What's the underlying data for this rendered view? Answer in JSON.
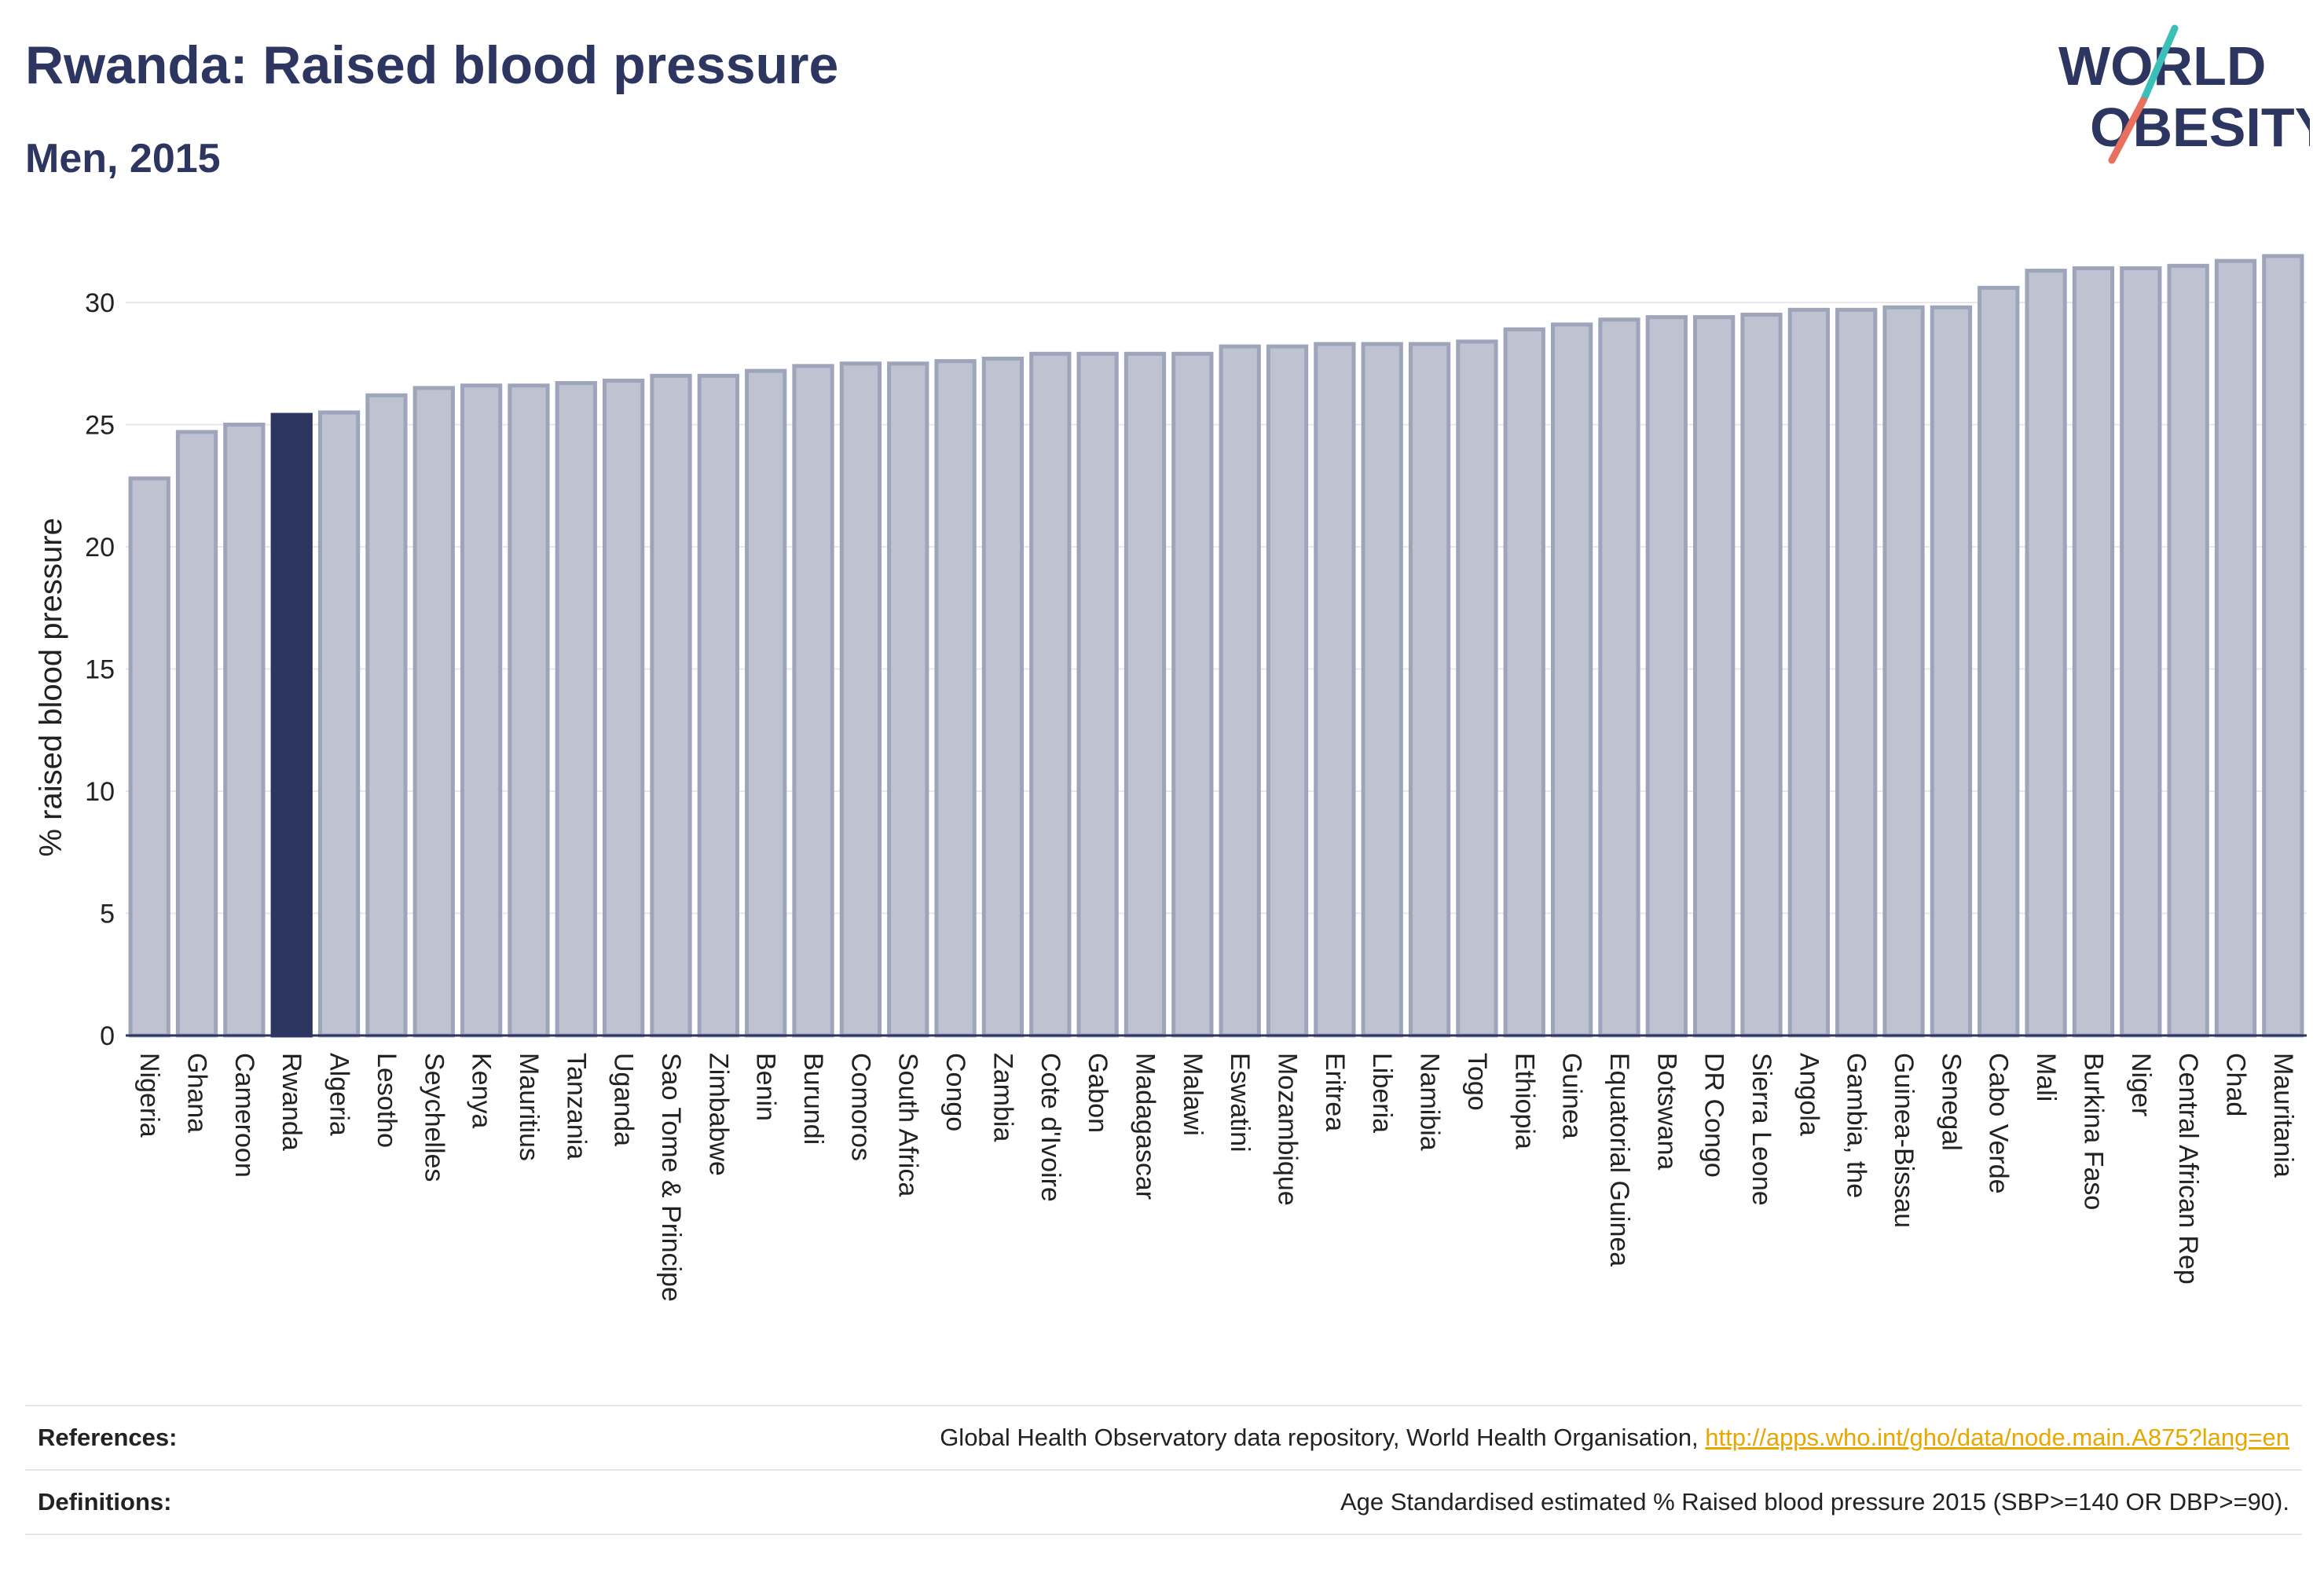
{
  "header": {
    "title": "Rwanda: Raised blood pressure",
    "subtitle": "Men, 2015"
  },
  "logo": {
    "line1": "WORLD",
    "line2": "OBESITY",
    "colors": {
      "text": "#2d3561",
      "slash_teal": "#3bbfb8",
      "slash_red": "#e8705e"
    }
  },
  "footer": {
    "references_label": "References:",
    "references_text": "Global Health Observatory data repository, World Health Organisation, ",
    "references_link": "http://apps.who.int/gho/data/node.main.A875?lang=en",
    "definitions_label": "Definitions:",
    "definitions_text": "Age Standardised estimated % Raised blood pressure 2015 (SBP>=140 OR DBP>=90)."
  },
  "chart_data": {
    "type": "bar",
    "title": "Rwanda: Raised blood pressure",
    "subtitle": "Men, 2015",
    "xlabel": "",
    "ylabel": "% raised blood pressure",
    "ylim": [
      0,
      33
    ],
    "yticks": [
      0,
      5,
      10,
      15,
      20,
      25,
      30
    ],
    "grid": true,
    "highlight": "Rwanda",
    "colors": {
      "bar": "#bfc3d1",
      "bar_edge": "#9ea4ba",
      "highlight": "#2d3561"
    },
    "categories": [
      "Nigeria",
      "Ghana",
      "Cameroon",
      "Rwanda",
      "Algeria",
      "Lesotho",
      "Seychelles",
      "Kenya",
      "Mauritius",
      "Tanzania",
      "Uganda",
      "Sao Tome & Principe",
      "Zimbabwe",
      "Benin",
      "Burundi",
      "Comoros",
      "South Africa",
      "Congo",
      "Zambia",
      "Cote d'Ivoire",
      "Gabon",
      "Madagascar",
      "Malawi",
      "Eswatini",
      "Mozambique",
      "Eritrea",
      "Liberia",
      "Namibia",
      "Togo",
      "Ethiopia",
      "Guinea",
      "Equatorial Guinea",
      "Botswana",
      "DR Congo",
      "Sierra Leone",
      "Angola",
      "Gambia, the",
      "Guinea-Bissau",
      "Senegal",
      "Cabo Verde",
      "Mali",
      "Burkina Faso",
      "Niger",
      "Central African Rep",
      "Chad",
      "Mauritania"
    ],
    "values": [
      22.8,
      24.7,
      25.0,
      25.4,
      25.5,
      26.2,
      26.5,
      26.6,
      26.6,
      26.7,
      26.8,
      27.0,
      27.0,
      27.2,
      27.4,
      27.5,
      27.5,
      27.6,
      27.7,
      27.9,
      27.9,
      27.9,
      27.9,
      28.2,
      28.2,
      28.3,
      28.3,
      28.3,
      28.4,
      28.9,
      29.1,
      29.3,
      29.4,
      29.4,
      29.5,
      29.7,
      29.7,
      29.8,
      29.8,
      30.6,
      31.3,
      31.4,
      31.4,
      31.5,
      31.7,
      31.9
    ]
  }
}
